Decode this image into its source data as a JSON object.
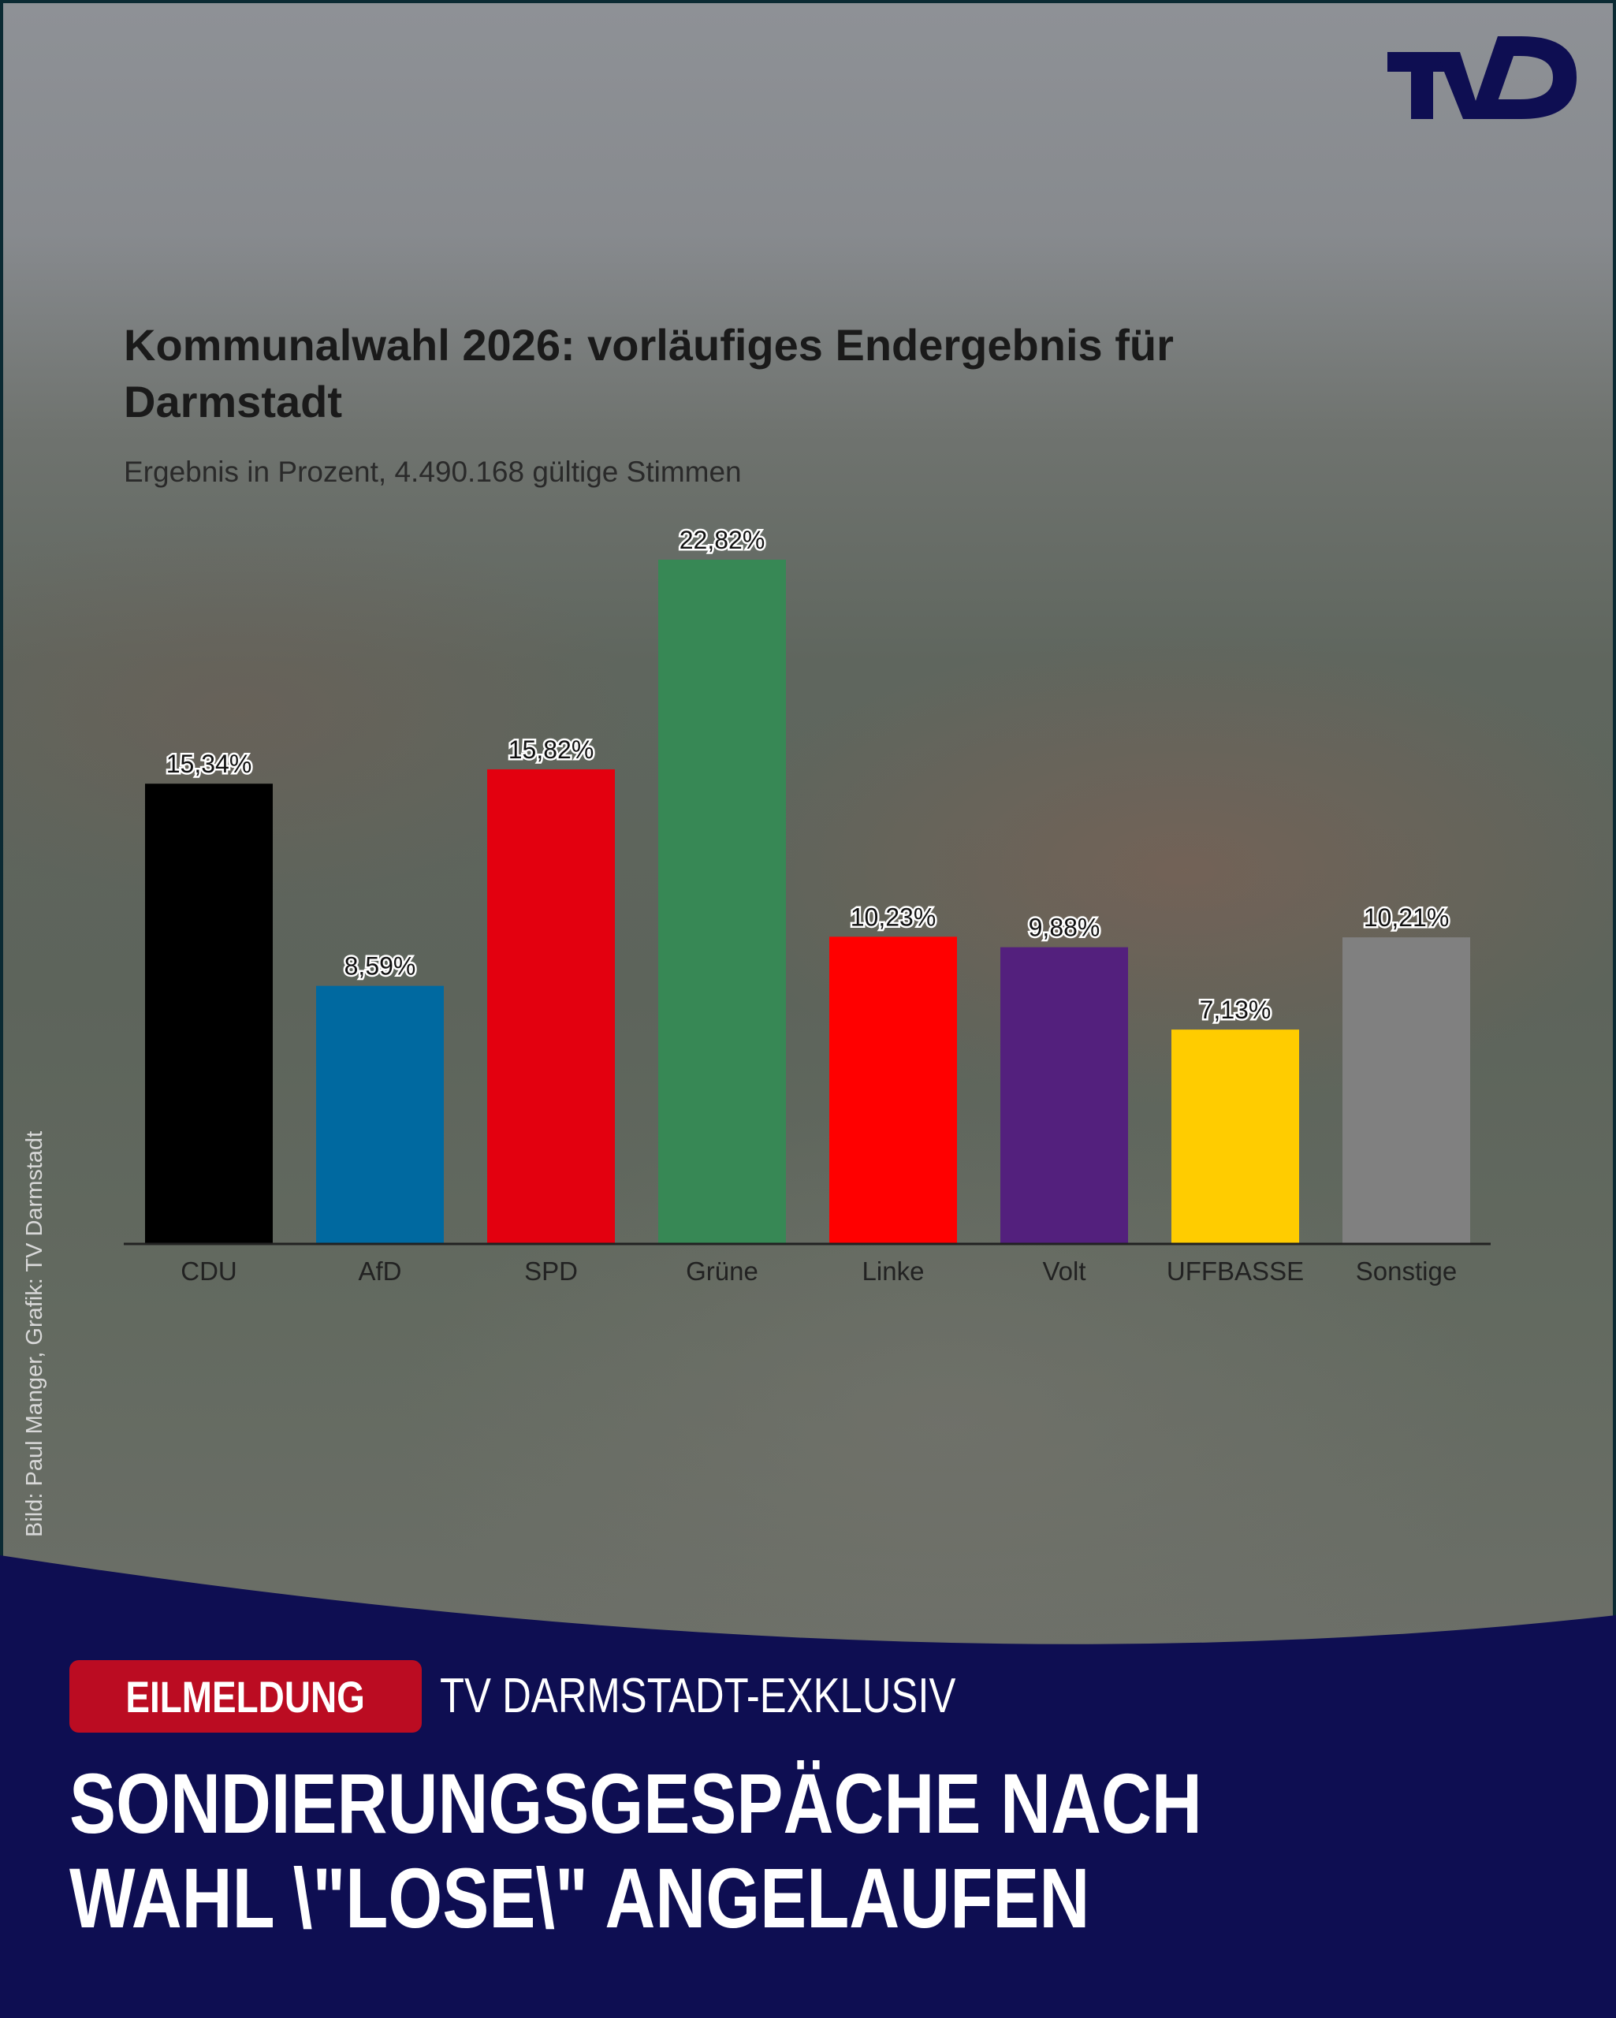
{
  "brand": {
    "logo_text": "TVD",
    "navy": "#0e0e52",
    "red": "#bb0c22"
  },
  "chart_data": {
    "type": "bar",
    "title": "Kommunalwahl 2026: vorläufiges Endergebnis für Darmstadt",
    "subtitle": "Ergebnis in Prozent, 4.490.168 gültige Stimmen",
    "categories": [
      "CDU",
      "AfD",
      "SPD",
      "Grüne",
      "Linke",
      "Volt",
      "UFFBASSE",
      "Sonstige"
    ],
    "values": [
      15.34,
      8.59,
      15.82,
      22.82,
      10.23,
      9.88,
      7.13,
      10.21
    ],
    "labels": [
      "15,34%",
      "8,59%",
      "15,82%",
      "22,82%",
      "10,23%",
      "9,88%",
      "7,13%",
      "10,21%"
    ],
    "colors": [
      "#000000",
      "#0069a0",
      "#e3000f",
      "#378855",
      "#ff0000",
      "#53207d",
      "#ffcc00",
      "#808080"
    ],
    "xlabel": "",
    "ylabel": "",
    "ylim": [
      0,
      22.82
    ],
    "grid": false,
    "legend": "none"
  },
  "source": "Bild: Paul Manger, Grafik: TV Darmstadt",
  "badge": "EILMELDUNG",
  "kicker": "TV DARMSTADT-EXKLUSIV",
  "headline": {
    "line1": "SONDIERUNGSGESPÄCHE NACH",
    "line2": "WAHL \\\"LOSE\\\" ANGELAUFEN"
  }
}
